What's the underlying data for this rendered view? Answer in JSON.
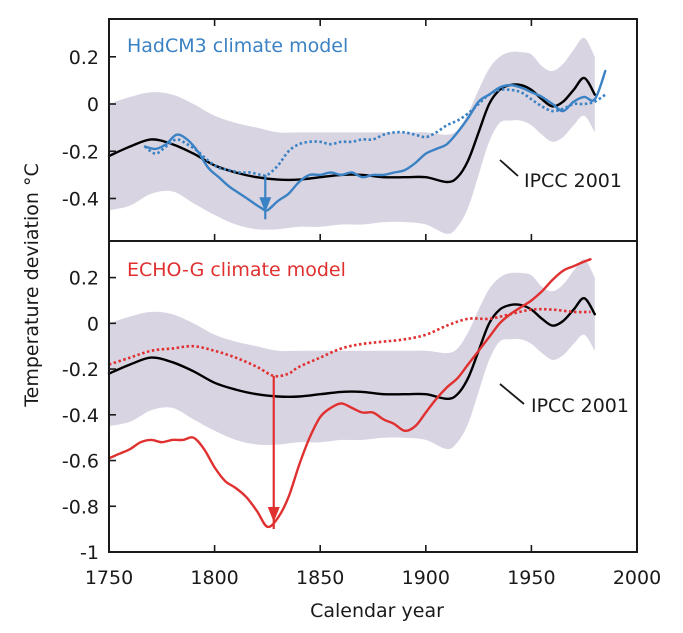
{
  "chart_data": {
    "type": "line",
    "xlabel": "Calendar year",
    "ylabel": "Temperature deviation °C",
    "xlim": [
      1750,
      2000
    ],
    "x_ticks": [
      "1750",
      "1800",
      "1850",
      "1900",
      "1950",
      "2000"
    ],
    "panels": [
      {
        "title": "HadCM3 climate model",
        "title_color": "#3b82c4",
        "ylim": [
          -0.58,
          0.36
        ],
        "y_ticks": [
          "0.2",
          "0",
          "-0.2",
          "-0.4"
        ],
        "annotation": "IPCC 2001",
        "arrow": {
          "x": 1824,
          "y_from": -0.3,
          "y_to": -0.45
        },
        "band": {
          "x": [
            1750,
            1760,
            1770,
            1780,
            1790,
            1800,
            1810,
            1820,
            1830,
            1840,
            1850,
            1860,
            1870,
            1880,
            1890,
            1900,
            1910,
            1915,
            1920,
            1925,
            1930,
            1935,
            1940,
            1945,
            1950,
            1955,
            1960,
            1965,
            1970,
            1975,
            1980
          ],
          "upper": [
            0.0,
            0.03,
            0.05,
            0.04,
            0.0,
            -0.05,
            -0.08,
            -0.1,
            -0.12,
            -0.12,
            -0.12,
            -0.12,
            -0.12,
            -0.12,
            -0.12,
            -0.12,
            -0.13,
            -0.11,
            -0.04,
            0.06,
            0.15,
            0.2,
            0.22,
            0.22,
            0.21,
            0.16,
            0.14,
            0.17,
            0.23,
            0.28,
            0.2
          ],
          "lower": [
            -0.45,
            -0.43,
            -0.38,
            -0.37,
            -0.42,
            -0.47,
            -0.51,
            -0.53,
            -0.53,
            -0.52,
            -0.52,
            -0.51,
            -0.51,
            -0.5,
            -0.5,
            -0.51,
            -0.55,
            -0.52,
            -0.44,
            -0.3,
            -0.16,
            -0.08,
            -0.07,
            -0.07,
            -0.09,
            -0.13,
            -0.16,
            -0.14,
            -0.09,
            -0.05,
            -0.12
          ]
        },
        "series": [
          {
            "name": "IPCC 2001",
            "color": "#000000",
            "style": "solid",
            "x": [
              1750,
              1760,
              1770,
              1780,
              1790,
              1800,
              1810,
              1820,
              1830,
              1840,
              1850,
              1860,
              1870,
              1880,
              1890,
              1900,
              1910,
              1915,
              1920,
              1925,
              1930,
              1935,
              1940,
              1945,
              1950,
              1955,
              1960,
              1965,
              1970,
              1975,
              1980
            ],
            "y": [
              -0.22,
              -0.18,
              -0.15,
              -0.17,
              -0.21,
              -0.26,
              -0.29,
              -0.31,
              -0.32,
              -0.32,
              -0.31,
              -0.3,
              -0.3,
              -0.31,
              -0.31,
              -0.31,
              -0.33,
              -0.31,
              -0.24,
              -0.12,
              0.0,
              0.06,
              0.08,
              0.08,
              0.06,
              0.02,
              -0.01,
              0.01,
              0.06,
              0.11,
              0.04
            ]
          },
          {
            "name": "HadCM3 solid",
            "color": "#3b82c4",
            "style": "solid",
            "x": [
              1767,
              1772,
              1777,
              1782,
              1787,
              1792,
              1797,
              1802,
              1807,
              1812,
              1817,
              1822,
              1825,
              1830,
              1835,
              1840,
              1845,
              1850,
              1855,
              1860,
              1865,
              1870,
              1875,
              1880,
              1885,
              1890,
              1895,
              1900,
              1905,
              1910,
              1915,
              1920,
              1925,
              1930,
              1935,
              1940,
              1945,
              1950,
              1955,
              1960,
              1965,
              1970,
              1975,
              1980,
              1985
            ],
            "y": [
              -0.18,
              -0.19,
              -0.17,
              -0.13,
              -0.15,
              -0.2,
              -0.27,
              -0.31,
              -0.35,
              -0.38,
              -0.41,
              -0.44,
              -0.45,
              -0.41,
              -0.38,
              -0.33,
              -0.3,
              -0.3,
              -0.29,
              -0.3,
              -0.29,
              -0.31,
              -0.3,
              -0.3,
              -0.29,
              -0.28,
              -0.25,
              -0.21,
              -0.19,
              -0.17,
              -0.12,
              -0.06,
              0.01,
              0.04,
              0.07,
              0.08,
              0.07,
              0.05,
              0.03,
              0.0,
              -0.03,
              0.01,
              0.03,
              0.02,
              0.14
            ]
          },
          {
            "name": "HadCM3 dotted",
            "color": "#3b82c4",
            "style": "dotted",
            "x": [
              1767,
              1772,
              1777,
              1782,
              1787,
              1792,
              1797,
              1802,
              1807,
              1812,
              1817,
              1822,
              1825,
              1830,
              1835,
              1840,
              1845,
              1850,
              1855,
              1860,
              1865,
              1870,
              1875,
              1880,
              1885,
              1890,
              1895,
              1900,
              1905,
              1910,
              1915,
              1920,
              1925,
              1930,
              1935,
              1940,
              1945,
              1950,
              1955,
              1960,
              1965,
              1970,
              1975,
              1980,
              1985
            ],
            "y": [
              -0.18,
              -0.21,
              -0.18,
              -0.15,
              -0.17,
              -0.2,
              -0.24,
              -0.27,
              -0.28,
              -0.29,
              -0.29,
              -0.3,
              -0.3,
              -0.26,
              -0.2,
              -0.17,
              -0.16,
              -0.16,
              -0.17,
              -0.16,
              -0.16,
              -0.15,
              -0.15,
              -0.13,
              -0.12,
              -0.12,
              -0.13,
              -0.14,
              -0.12,
              -0.09,
              -0.07,
              -0.04,
              0.0,
              0.04,
              0.06,
              0.06,
              0.05,
              0.02,
              -0.01,
              -0.03,
              -0.02,
              0.0,
              0.0,
              0.01,
              0.04
            ]
          }
        ]
      },
      {
        "title": "ECHO-G climate model",
        "title_color": "#e03030",
        "ylim": [
          -1.0,
          0.36
        ],
        "y_ticks": [
          "0.2",
          "0",
          "-0.2",
          "-0.4",
          "-0.6",
          "-0.8",
          "-1"
        ],
        "annotation": "IPCC 2001",
        "arrow": {
          "x": 1828,
          "y_from": -0.23,
          "y_to": -0.86
        },
        "band": {
          "x": [
            1750,
            1760,
            1770,
            1780,
            1790,
            1800,
            1810,
            1820,
            1830,
            1840,
            1850,
            1860,
            1870,
            1880,
            1890,
            1900,
            1910,
            1915,
            1920,
            1925,
            1930,
            1935,
            1940,
            1945,
            1950,
            1955,
            1960,
            1965,
            1970,
            1975,
            1980
          ],
          "upper": [
            0.0,
            0.03,
            0.05,
            0.04,
            0.0,
            -0.05,
            -0.08,
            -0.1,
            -0.12,
            -0.12,
            -0.12,
            -0.12,
            -0.12,
            -0.12,
            -0.12,
            -0.12,
            -0.13,
            -0.11,
            -0.04,
            0.06,
            0.15,
            0.2,
            0.22,
            0.22,
            0.21,
            0.16,
            0.14,
            0.17,
            0.23,
            0.28,
            0.2
          ],
          "lower": [
            -0.45,
            -0.43,
            -0.38,
            -0.37,
            -0.42,
            -0.47,
            -0.51,
            -0.53,
            -0.53,
            -0.52,
            -0.52,
            -0.51,
            -0.51,
            -0.5,
            -0.5,
            -0.51,
            -0.55,
            -0.52,
            -0.44,
            -0.3,
            -0.16,
            -0.08,
            -0.07,
            -0.07,
            -0.09,
            -0.13,
            -0.16,
            -0.14,
            -0.09,
            -0.05,
            -0.12
          ]
        },
        "series": [
          {
            "name": "IPCC 2001",
            "color": "#000000",
            "style": "solid",
            "x": [
              1750,
              1760,
              1770,
              1780,
              1790,
              1800,
              1810,
              1820,
              1830,
              1840,
              1850,
              1860,
              1870,
              1880,
              1890,
              1900,
              1910,
              1915,
              1920,
              1925,
              1930,
              1935,
              1940,
              1945,
              1950,
              1955,
              1960,
              1965,
              1970,
              1975,
              1980
            ],
            "y": [
              -0.22,
              -0.18,
              -0.15,
              -0.17,
              -0.21,
              -0.26,
              -0.29,
              -0.31,
              -0.32,
              -0.32,
              -0.31,
              -0.3,
              -0.3,
              -0.31,
              -0.31,
              -0.31,
              -0.33,
              -0.31,
              -0.24,
              -0.12,
              0.0,
              0.06,
              0.08,
              0.08,
              0.06,
              0.02,
              -0.01,
              0.01,
              0.06,
              0.11,
              0.04
            ]
          },
          {
            "name": "ECHO-G solid",
            "color": "#e03030",
            "style": "solid",
            "x": [
              1750,
              1755,
              1760,
              1765,
              1770,
              1775,
              1780,
              1785,
              1790,
              1795,
              1800,
              1805,
              1810,
              1815,
              1820,
              1825,
              1830,
              1835,
              1840,
              1845,
              1850,
              1855,
              1860,
              1865,
              1870,
              1875,
              1880,
              1885,
              1890,
              1895,
              1900,
              1905,
              1910,
              1915,
              1920,
              1925,
              1930,
              1935,
              1940,
              1945,
              1950,
              1955,
              1960,
              1965,
              1970,
              1975,
              1978
            ],
            "y": [
              -0.59,
              -0.57,
              -0.55,
              -0.52,
              -0.51,
              -0.52,
              -0.51,
              -0.51,
              -0.5,
              -0.55,
              -0.63,
              -0.69,
              -0.72,
              -0.76,
              -0.82,
              -0.89,
              -0.85,
              -0.76,
              -0.62,
              -0.5,
              -0.41,
              -0.37,
              -0.35,
              -0.37,
              -0.39,
              -0.39,
              -0.42,
              -0.44,
              -0.47,
              -0.45,
              -0.39,
              -0.33,
              -0.28,
              -0.24,
              -0.18,
              -0.12,
              -0.06,
              0.0,
              0.04,
              0.07,
              0.1,
              0.14,
              0.19,
              0.23,
              0.25,
              0.27,
              0.28
            ]
          },
          {
            "name": "ECHO-G dotted",
            "color": "#e03030",
            "style": "dotted",
            "x": [
              1750,
              1760,
              1770,
              1780,
              1790,
              1800,
              1810,
              1820,
              1828,
              1835,
              1840,
              1850,
              1860,
              1870,
              1880,
              1890,
              1900,
              1910,
              1920,
              1930,
              1940,
              1950,
              1960,
              1970,
              1978
            ],
            "y": [
              -0.18,
              -0.15,
              -0.12,
              -0.11,
              -0.1,
              -0.12,
              -0.15,
              -0.19,
              -0.23,
              -0.22,
              -0.19,
              -0.15,
              -0.11,
              -0.09,
              -0.08,
              -0.07,
              -0.05,
              -0.01,
              0.02,
              0.02,
              0.04,
              0.06,
              0.06,
              0.05,
              0.05
            ]
          }
        ]
      }
    ]
  }
}
